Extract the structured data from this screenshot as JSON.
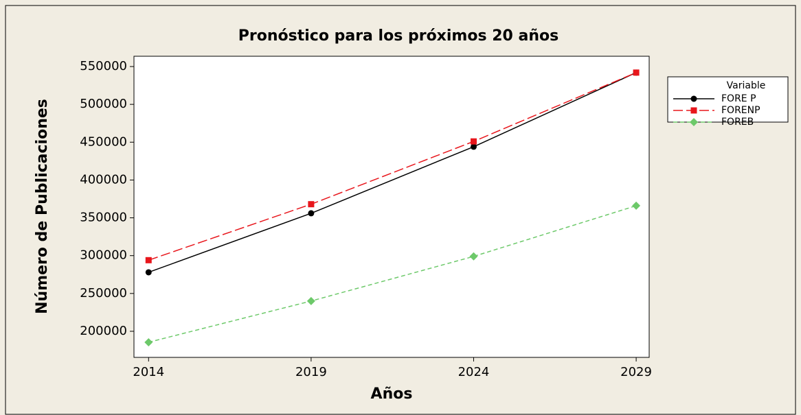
{
  "chart_data": {
    "type": "line",
    "title": "Pronóstico para los próximos 20 años",
    "xlabel": "Años",
    "ylabel": "Número de Publicaciones",
    "x": [
      2014,
      2019,
      2024,
      2029
    ],
    "xlim": [
      2013.55,
      2029.4
    ],
    "xticks": [
      2014,
      2019,
      2024,
      2029
    ],
    "ylim": [
      165500,
      563600
    ],
    "yticks": [
      200000,
      250000,
      300000,
      350000,
      400000,
      450000,
      500000,
      550000
    ],
    "legend_title": "Variable",
    "legend": "right",
    "series": [
      {
        "name": "FORE P",
        "color": "#000000",
        "marker": "circle",
        "dash": "solid",
        "values": [
          278000,
          356000,
          444000,
          542000
        ]
      },
      {
        "name": "FORENP",
        "color": "#e8161c",
        "marker": "square",
        "dash": "long",
        "values": [
          294000,
          368000,
          451000,
          542000
        ]
      },
      {
        "name": "FOREB",
        "color": "#6dc96a",
        "marker": "diamond",
        "dash": "short",
        "values": [
          185500,
          240000,
          299000,
          366000
        ]
      }
    ]
  }
}
